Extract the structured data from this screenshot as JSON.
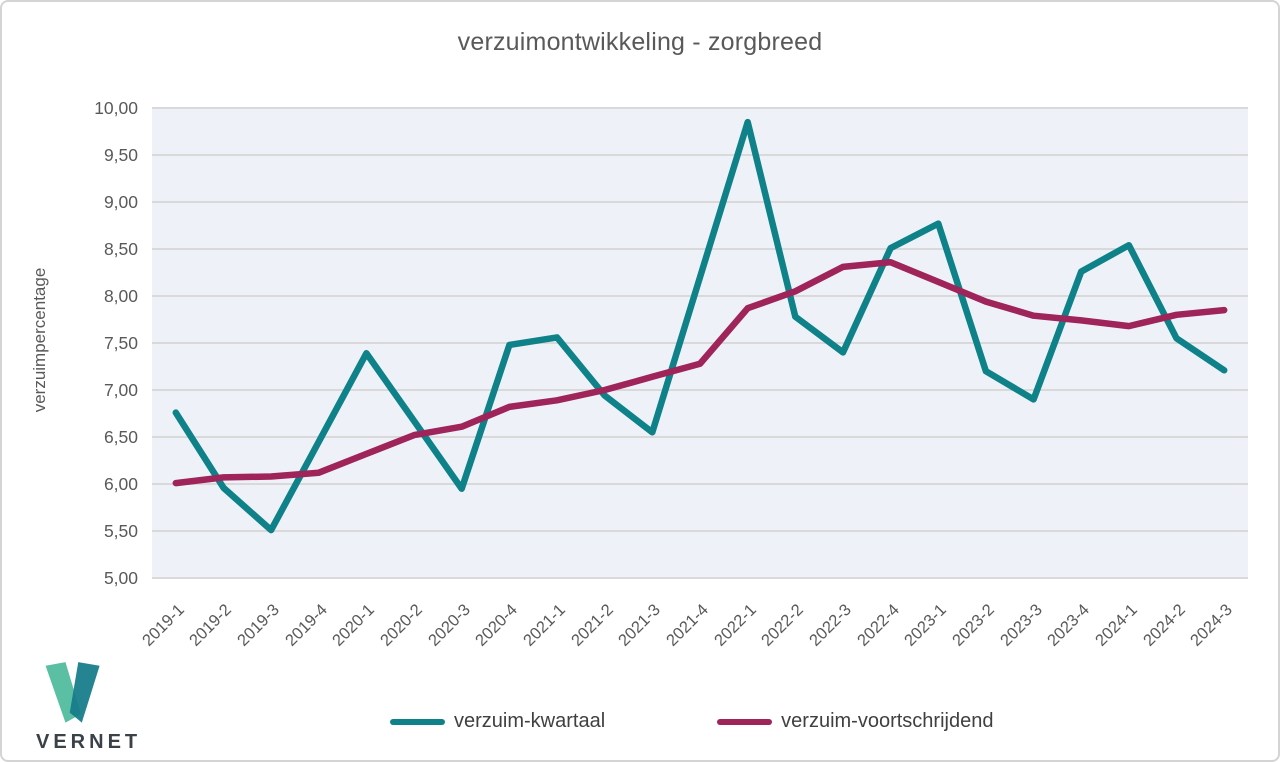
{
  "title": "verzuimontwikkeling - zorgbreed",
  "chart_data": {
    "type": "line",
    "title": "verzuimontwikkeling - zorgbreed",
    "xlabel": "",
    "ylabel": "verzuimpercentage",
    "ylim": [
      5.0,
      10.0
    ],
    "ytick_step": 0.5,
    "ytick_labels": [
      "10,00",
      "9,50",
      "9,00",
      "8,50",
      "8,00",
      "7,50",
      "7,00",
      "6,50",
      "6,00",
      "5,50",
      "5,00"
    ],
    "grid": "horizontal",
    "legend_position": "bottom",
    "plot_bg": "#eef2f8",
    "grid_color": "#d9d9d9",
    "categories": [
      "2019-1",
      "2019-2",
      "2019-3",
      "2019-4",
      "2020-1",
      "2020-2",
      "2020-3",
      "2020-4",
      "2021-1",
      "2021-2",
      "2021-3",
      "2021-4",
      "2022-1",
      "2022-2",
      "2022-3",
      "2022-4",
      "2023-1",
      "2023-2",
      "2023-3",
      "2023-4",
      "2024-1",
      "2024-2",
      "2024-3"
    ],
    "series": [
      {
        "name": "verzuim-kwartaal",
        "color": "#0e8288",
        "values": [
          6.76,
          5.96,
          5.51,
          6.45,
          7.39,
          6.67,
          5.95,
          7.48,
          7.56,
          6.94,
          6.55,
          8.2,
          9.85,
          7.78,
          7.4,
          8.51,
          8.77,
          7.2,
          6.9,
          8.26,
          8.54,
          7.55,
          7.21
        ]
      },
      {
        "name": "verzuim-voortschrijdend",
        "color": "#9e2459",
        "values": [
          6.01,
          6.07,
          6.08,
          6.12,
          6.32,
          6.52,
          6.61,
          6.82,
          6.89,
          7.0,
          7.14,
          7.28,
          7.87,
          8.05,
          8.31,
          8.36,
          8.15,
          7.94,
          7.79,
          7.74,
          7.68,
          7.8,
          7.85
        ]
      }
    ]
  },
  "logo": {
    "text": "VERNET",
    "color_light": "#5abfa3",
    "color_dark": "#177c8a",
    "text_color": "#3a4147"
  }
}
